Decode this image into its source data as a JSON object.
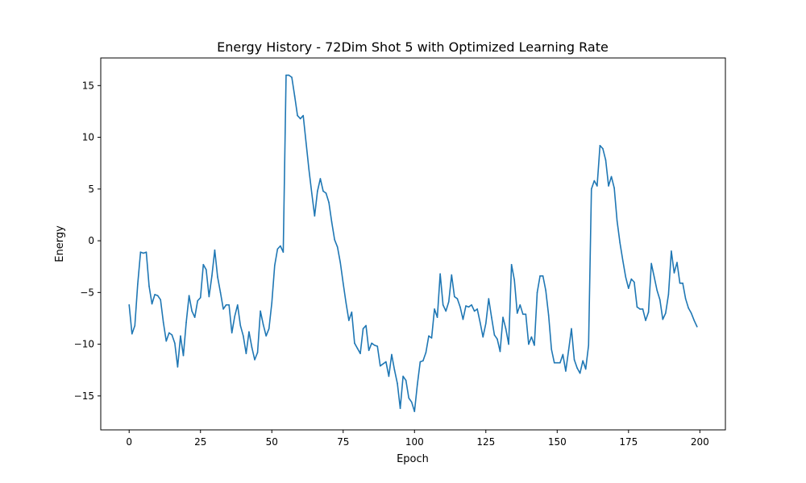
{
  "chart_data": {
    "type": "line",
    "title": "Energy History - 72Dim Shot 5 with Optimized Learning Rate",
    "xlabel": "Epoch",
    "ylabel": "Energy",
    "xlim": [
      -9.95,
      208.95
    ],
    "ylim": [
      -18.28,
      17.67
    ],
    "grid": false,
    "line_color": "#1f77b4",
    "x_ticks": [
      0,
      25,
      50,
      75,
      100,
      125,
      150,
      175,
      200
    ],
    "y_ticks": [
      -15,
      -10,
      -5,
      0,
      5,
      10,
      15
    ],
    "x_tick_labels": [
      "0",
      "25",
      "50",
      "75",
      "100",
      "125",
      "150",
      "175",
      "200"
    ],
    "y_tick_labels": [
      "−15",
      "−10",
      "−5",
      "0",
      "5",
      "10",
      "15"
    ],
    "series": [
      {
        "name": "Energy",
        "x_start": 0,
        "values": [
          -6.2,
          -9.0,
          -8.2,
          -4.2,
          -1.1,
          -1.2,
          -1.1,
          -4.4,
          -6.1,
          -5.2,
          -5.3,
          -5.7,
          -7.9,
          -9.7,
          -8.9,
          -9.1,
          -9.9,
          -12.2,
          -9.2,
          -11.1,
          -7.9,
          -5.3,
          -6.8,
          -7.4,
          -5.8,
          -5.5,
          -2.3,
          -2.8,
          -5.4,
          -3.4,
          -0.9,
          -3.5,
          -5.0,
          -6.6,
          -6.2,
          -6.2,
          -8.9,
          -7.3,
          -6.2,
          -8.2,
          -9.2,
          -10.9,
          -8.8,
          -10.3,
          -11.5,
          -10.8,
          -6.8,
          -8.1,
          -9.2,
          -8.5,
          -6.0,
          -2.4,
          -0.8,
          -0.5,
          -1.1,
          16.0,
          16.0,
          15.8,
          14.0,
          12.1,
          11.8,
          12.1,
          9.5,
          6.9,
          4.6,
          2.4,
          4.8,
          6.0,
          4.8,
          4.6,
          3.7,
          1.8,
          0.1,
          -0.6,
          -2.1,
          -4.1,
          -6.0,
          -7.7,
          -6.9,
          -9.9,
          -10.4,
          -10.9,
          -8.5,
          -8.2,
          -10.6,
          -9.9,
          -10.1,
          -10.2,
          -12.1,
          -11.9,
          -11.7,
          -13.1,
          -11.0,
          -12.5,
          -13.8,
          -16.2,
          -13.1,
          -13.5,
          -15.2,
          -15.6,
          -16.5,
          -13.9,
          -11.7,
          -11.6,
          -10.8,
          -9.2,
          -9.4,
          -6.6,
          -7.4,
          -3.2,
          -6.2,
          -6.8,
          -5.9,
          -3.3,
          -5.4,
          -5.6,
          -6.4,
          -7.6,
          -6.3,
          -6.4,
          -6.2,
          -6.8,
          -6.6,
          -7.9,
          -9.3,
          -8.0,
          -5.6,
          -7.4,
          -9.1,
          -9.5,
          -10.7,
          -7.4,
          -8.5,
          -10.0,
          -2.3,
          -3.8,
          -7.0,
          -6.2,
          -7.1,
          -7.1,
          -10.0,
          -9.3,
          -10.1,
          -5.0,
          -3.4,
          -3.4,
          -4.8,
          -7.2,
          -10.5,
          -11.8,
          -11.8,
          -11.8,
          -11.0,
          -12.6,
          -10.6,
          -8.5,
          -11.5,
          -12.3,
          -12.8,
          -11.6,
          -12.4,
          -10.1,
          5.0,
          5.8,
          5.3,
          9.2,
          8.9,
          7.8,
          5.3,
          6.2,
          5.1,
          1.9,
          -0.2,
          -1.9,
          -3.5,
          -4.6,
          -3.7,
          -4.0,
          -6.4,
          -6.6,
          -6.6,
          -7.7,
          -6.9,
          -2.2,
          -3.5,
          -4.8,
          -5.7,
          -7.6,
          -7.0,
          -5.2,
          -1.0,
          -3.1,
          -2.1,
          -4.1,
          -4.1,
          -5.6,
          -6.5,
          -7.0,
          -7.7,
          -8.3
        ]
      }
    ]
  }
}
